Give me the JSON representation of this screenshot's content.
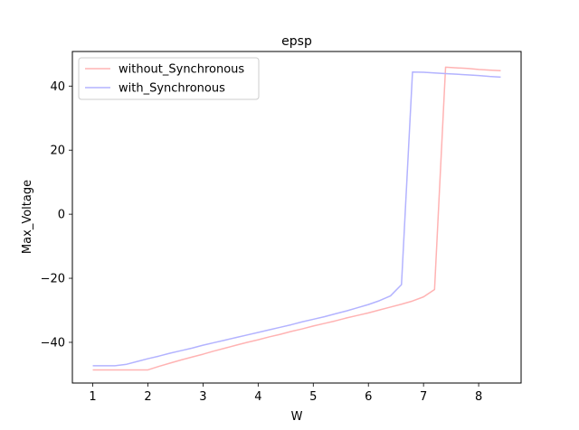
{
  "chart_data": {
    "type": "line",
    "title": "epsp",
    "xlabel": "W",
    "ylabel": "Max_Voltage",
    "xlim": [
      0.63,
      8.77
    ],
    "ylim": [
      -52.7,
      50.8
    ],
    "x_ticks": [
      1,
      2,
      3,
      4,
      5,
      6,
      7,
      8
    ],
    "y_ticks": [
      -40,
      -20,
      0,
      20,
      40
    ],
    "grid": false,
    "legend_position": "top-left",
    "series": [
      {
        "name": "without_Synchronous",
        "color": "#ffb3b3",
        "x": [
          1.0,
          1.2,
          1.4,
          1.6,
          1.8,
          2.0,
          2.2,
          2.4,
          2.6,
          2.8,
          3.0,
          3.2,
          3.4,
          3.6,
          3.8,
          4.0,
          4.2,
          4.4,
          4.6,
          4.8,
          5.0,
          5.2,
          5.4,
          5.6,
          5.8,
          6.0,
          6.2,
          6.4,
          6.6,
          6.8,
          7.0,
          7.2,
          7.4,
          7.6,
          7.8,
          8.0,
          8.2,
          8.4
        ],
        "y": [
          -48.6,
          -48.6,
          -48.6,
          -48.6,
          -48.6,
          -48.6,
          -47.5,
          -46.5,
          -45.5,
          -44.6,
          -43.7,
          -42.7,
          -41.8,
          -40.9,
          -40.0,
          -39.2,
          -38.3,
          -37.5,
          -36.6,
          -35.8,
          -34.9,
          -34.1,
          -33.3,
          -32.4,
          -31.6,
          -30.8,
          -29.9,
          -29.0,
          -28.1,
          -27.1,
          -25.8,
          -23.5,
          45.9,
          45.7,
          45.5,
          45.2,
          45.0,
          44.8
        ]
      },
      {
        "name": "with_Synchronous",
        "color": "#b3b3ff",
        "x": [
          1.0,
          1.2,
          1.4,
          1.6,
          1.8,
          2.0,
          2.2,
          2.4,
          2.6,
          2.8,
          3.0,
          3.2,
          3.4,
          3.6,
          3.8,
          4.0,
          4.2,
          4.4,
          4.6,
          4.8,
          5.0,
          5.2,
          5.4,
          5.6,
          5.8,
          6.0,
          6.2,
          6.4,
          6.6,
          6.8,
          7.0,
          7.2,
          7.4,
          7.6,
          7.8,
          8.0,
          8.2,
          8.4
        ],
        "y": [
          -47.3,
          -47.3,
          -47.3,
          -46.9,
          -46.0,
          -45.1,
          -44.3,
          -43.4,
          -42.6,
          -41.8,
          -40.9,
          -40.1,
          -39.3,
          -38.5,
          -37.7,
          -36.9,
          -36.1,
          -35.3,
          -34.5,
          -33.6,
          -32.8,
          -32.0,
          -31.1,
          -30.2,
          -29.2,
          -28.2,
          -27.0,
          -25.5,
          -22.0,
          44.4,
          44.3,
          44.1,
          43.9,
          43.7,
          43.5,
          43.3,
          43.0,
          42.8
        ]
      }
    ]
  }
}
